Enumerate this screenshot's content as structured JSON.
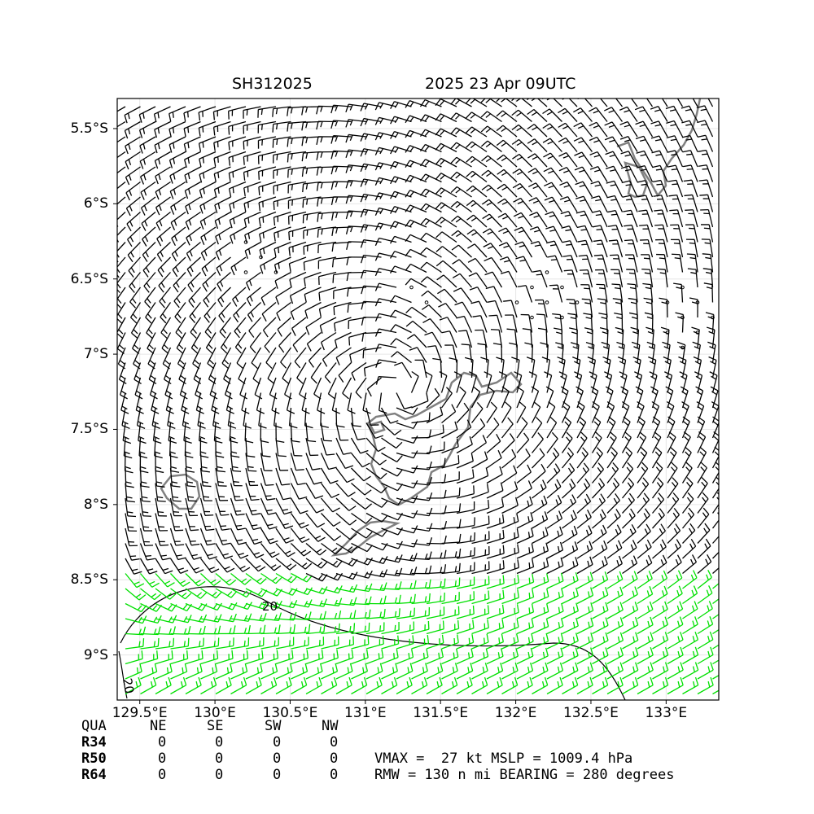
{
  "header": {
    "storm_id": "SH312025",
    "datetime": "2025 23 Apr 09UTC"
  },
  "map": {
    "lon_range": [
      129.35,
      133.35
    ],
    "lat_range": [
      -9.3,
      -5.3
    ],
    "lat_ticks": [
      {
        "value": -5.5,
        "label": "5.5°S"
      },
      {
        "value": -6.0,
        "label": "6°S"
      },
      {
        "value": -6.5,
        "label": "6.5°S"
      },
      {
        "value": -7.0,
        "label": "7°S"
      },
      {
        "value": -7.5,
        "label": "7.5°S"
      },
      {
        "value": -8.0,
        "label": "8°S"
      },
      {
        "value": -8.5,
        "label": "8.5°S"
      },
      {
        "value": -9.0,
        "label": "9°S"
      }
    ],
    "lon_ticks": [
      {
        "value": 129.5,
        "label": "129.5°E"
      },
      {
        "value": 130.0,
        "label": "130°E"
      },
      {
        "value": 130.5,
        "label": "130.5°E"
      },
      {
        "value": 131.0,
        "label": "131°E"
      },
      {
        "value": 131.5,
        "label": "131.5°E"
      },
      {
        "value": 132.0,
        "label": "132°E"
      },
      {
        "value": 132.5,
        "label": "132.5°E"
      },
      {
        "value": 133.0,
        "label": "133°E"
      }
    ],
    "contour_labels": [
      "20",
      "20"
    ],
    "barb_color": "#000000",
    "high_wind_barb_color": "#00e000",
    "coastline_color": "#808080",
    "grid": true
  },
  "wind_radii_table": {
    "header": [
      "QUA",
      "NE",
      "SE",
      "SW",
      "NW"
    ],
    "rows": [
      {
        "label": "R34",
        "values": [
          "0",
          "0",
          "0",
          "0"
        ]
      },
      {
        "label": "R50",
        "values": [
          "0",
          "0",
          "0",
          "0"
        ]
      },
      {
        "label": "R64",
        "values": [
          "0",
          "0",
          "0",
          "0"
        ]
      }
    ]
  },
  "summary": {
    "line1": "VMAX =  27 kt MSLP = 1009.4 hPa",
    "line2": "RMW = 130 n mi BEARING = 280 degrees"
  }
}
